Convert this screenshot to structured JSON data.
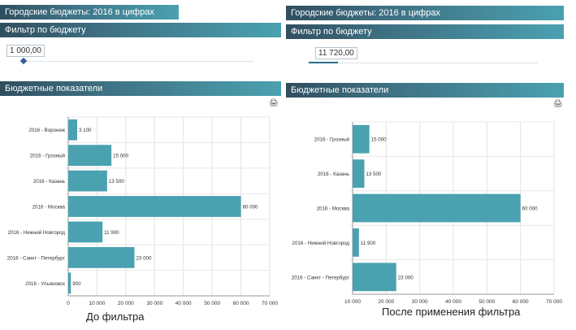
{
  "left": {
    "title": "Городские бюджеты: 2016 в цифрах",
    "filter_header": "Фильтр по бюджету",
    "slider_value": "1 000,00",
    "chart_header": "Бюджетные показатели",
    "footer": "До фильтра"
  },
  "right": {
    "title": "Городские бюджеты: 2016 в цифрах",
    "filter_header": "Фильтр по бюджету",
    "slider_value": "11 720,00",
    "chart_header": "Бюджетные показатели",
    "footer": "После применения  фильтра"
  },
  "icons": {
    "print": "printer-icon"
  },
  "colors": {
    "bar": "#4aa1b0",
    "header_dark": "#2f4f5f",
    "header_light": "#4aa1b0"
  },
  "chart_data": [
    {
      "type": "bar",
      "orientation": "horizontal",
      "categories": [
        "2016 - Воронеж",
        "2016 - Грозный",
        "2016 - Казань",
        "2016 - Москва",
        "2016 - Нижний Новгород",
        "2016 - Санкт - Петербург",
        "2016 - Ульяновск"
      ],
      "values": [
        3100,
        15000,
        13500,
        60000,
        11900,
        23000,
        900
      ],
      "value_labels": [
        "3 100",
        "15 000",
        "13 500",
        "60 000",
        "11 900",
        "23 000",
        "900"
      ],
      "xlim": [
        0,
        70000
      ],
      "ticks": [
        0,
        10000,
        20000,
        30000,
        40000,
        50000,
        60000,
        70000
      ],
      "tick_labels": [
        "0",
        "10 000",
        "20 000",
        "30 000",
        "40 000",
        "50 000",
        "60 000",
        "70 000"
      ],
      "grid": true
    },
    {
      "type": "bar",
      "orientation": "horizontal",
      "categories": [
        "2016 - Грозный",
        "2016 - Казань",
        "2016 - Москва",
        "2016 - Нижний Новгород",
        "2016 - Санкт - Петербург"
      ],
      "values": [
        15000,
        13500,
        60000,
        11900,
        23000
      ],
      "value_labels": [
        "15 000",
        "13 500",
        "60 000",
        "11 900",
        "23 000"
      ],
      "xlim": [
        10000,
        70000
      ],
      "ticks": [
        10000,
        20000,
        30000,
        40000,
        50000,
        60000,
        70000
      ],
      "tick_labels": [
        "10 000",
        "20 000",
        "30 000",
        "40 000",
        "50 000",
        "60 000",
        "70 000"
      ],
      "grid": true
    }
  ]
}
